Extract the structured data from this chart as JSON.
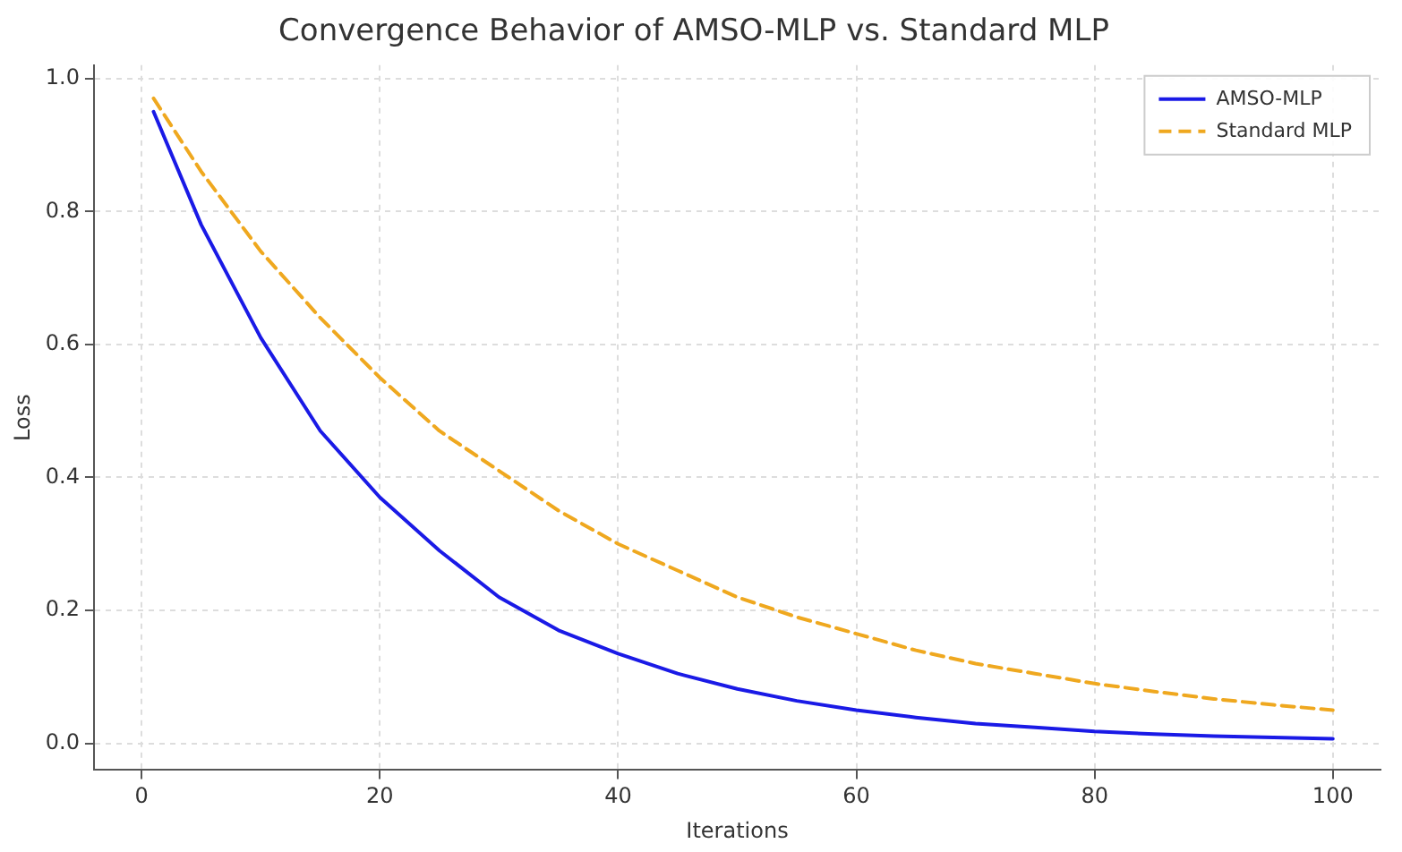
{
  "chart_data": {
    "type": "line",
    "title": "Convergence Behavior of AMSO-MLP vs. Standard MLP",
    "xlabel": "Iterations",
    "ylabel": "Loss",
    "x": [
      1,
      5,
      10,
      15,
      20,
      25,
      30,
      35,
      40,
      45,
      50,
      55,
      60,
      65,
      70,
      75,
      80,
      85,
      90,
      95,
      100
    ],
    "series": [
      {
        "name": "AMSO-MLP",
        "color": "#1a1ae6",
        "line_style": "solid",
        "values": [
          0.95,
          0.78,
          0.61,
          0.47,
          0.37,
          0.29,
          0.22,
          0.17,
          0.135,
          0.105,
          0.082,
          0.064,
          0.05,
          0.039,
          0.03,
          0.024,
          0.018,
          0.014,
          0.011,
          0.009,
          0.007
        ]
      },
      {
        "name": "Standard MLP",
        "color": "#efa81f",
        "line_style": "dashed",
        "values": [
          0.97,
          0.86,
          0.74,
          0.64,
          0.55,
          0.47,
          0.41,
          0.35,
          0.3,
          0.26,
          0.22,
          0.19,
          0.165,
          0.14,
          0.12,
          0.105,
          0.09,
          0.078,
          0.067,
          0.058,
          0.05
        ]
      }
    ],
    "xlim": [
      -4,
      104
    ],
    "xticks": [
      0,
      20,
      40,
      60,
      80,
      100
    ],
    "ylim": [
      -0.04,
      1.02
    ],
    "yticks": [
      {
        "value": 0,
        "label": "0.0"
      },
      {
        "value": 0.2,
        "label": "0.2"
      },
      {
        "value": 0.4,
        "label": "0.4"
      },
      {
        "value": 0.6,
        "label": "0.6"
      },
      {
        "value": 0.8,
        "label": "0.8"
      },
      {
        "value": 1,
        "label": "1.0"
      }
    ],
    "grid": true,
    "legend": "top right",
    "marker": "none"
  }
}
